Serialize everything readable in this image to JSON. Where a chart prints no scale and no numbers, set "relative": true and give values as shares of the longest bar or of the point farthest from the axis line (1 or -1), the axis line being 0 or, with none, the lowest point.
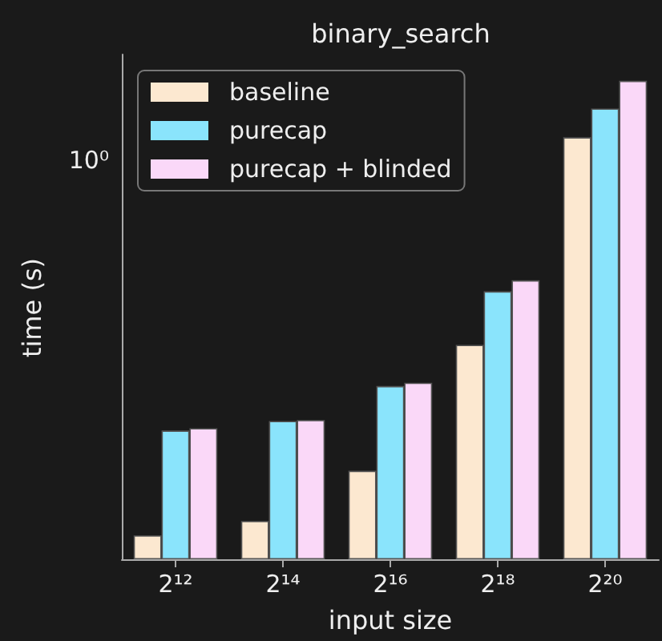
{
  "chart_data": {
    "type": "bar",
    "title": "binary_search",
    "xlabel": "input size",
    "ylabel": "time (s)",
    "categories": [
      "2¹²",
      "2¹⁴",
      "2¹⁶",
      "2¹⁸",
      "2²⁰"
    ],
    "series": [
      {
        "name": "baseline",
        "color": "#fce8d0",
        "values": [
          0.05,
          0.08,
          0.185,
          0.448,
          0.882
        ]
      },
      {
        "name": "purecap",
        "color": "#8ae4fc",
        "values": [
          0.269,
          0.289,
          0.362,
          0.56,
          0.942
        ]
      },
      {
        "name": "purecap + blinded",
        "color": "#fad8f8",
        "values": [
          0.274,
          0.291,
          0.369,
          0.583,
          1
        ]
      }
    ],
    "relative": true,
    "annotations": [
      "10⁰"
    ],
    "legend": "top left"
  }
}
